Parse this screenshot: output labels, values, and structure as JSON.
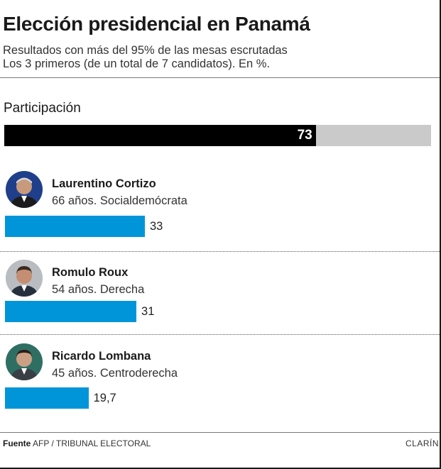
{
  "title": "Elección presidencial en Panamá",
  "subtitle": {
    "line1": "Resultados con más del 95% de las mesas escrutadas",
    "line2": "Los 3 primeros (de un total de 7 candidatos). En %."
  },
  "participation": {
    "label": "Participación",
    "value": 73,
    "value_label": "73"
  },
  "candidates": [
    {
      "name": "Laurentino Cortizo",
      "description": "66 años. Socialdemócrata",
      "value": 33,
      "value_label": "33"
    },
    {
      "name": "Romulo Roux",
      "description": "54 años. Derecha",
      "value": 31,
      "value_label": "31"
    },
    {
      "name": "Ricardo Lombana",
      "description": "45 años. Centroderecha",
      "value": 19.7,
      "value_label": "19,7"
    }
  ],
  "footer": {
    "source_label": "Fuente",
    "source_text": "AFP / TRIBUNAL ELECTORAL",
    "brand": "CLARÍN"
  },
  "colors": {
    "bar": "#0095d9",
    "participation_fill": "#000000",
    "participation_track": "#cacaca"
  },
  "chart_data": {
    "type": "bar",
    "title": "Elección presidencial en Panamá",
    "subtitle": "Resultados con más del 95% de las mesas escrutadas. Los 3 primeros (de un total de 7 candidatos). En %.",
    "categories": [
      "Laurentino Cortizo",
      "Romulo Roux",
      "Ricardo Lombana"
    ],
    "values": [
      33,
      31,
      19.7
    ],
    "participation": 73,
    "xlim": [
      0,
      100
    ],
    "grid": false,
    "legend": "none"
  }
}
